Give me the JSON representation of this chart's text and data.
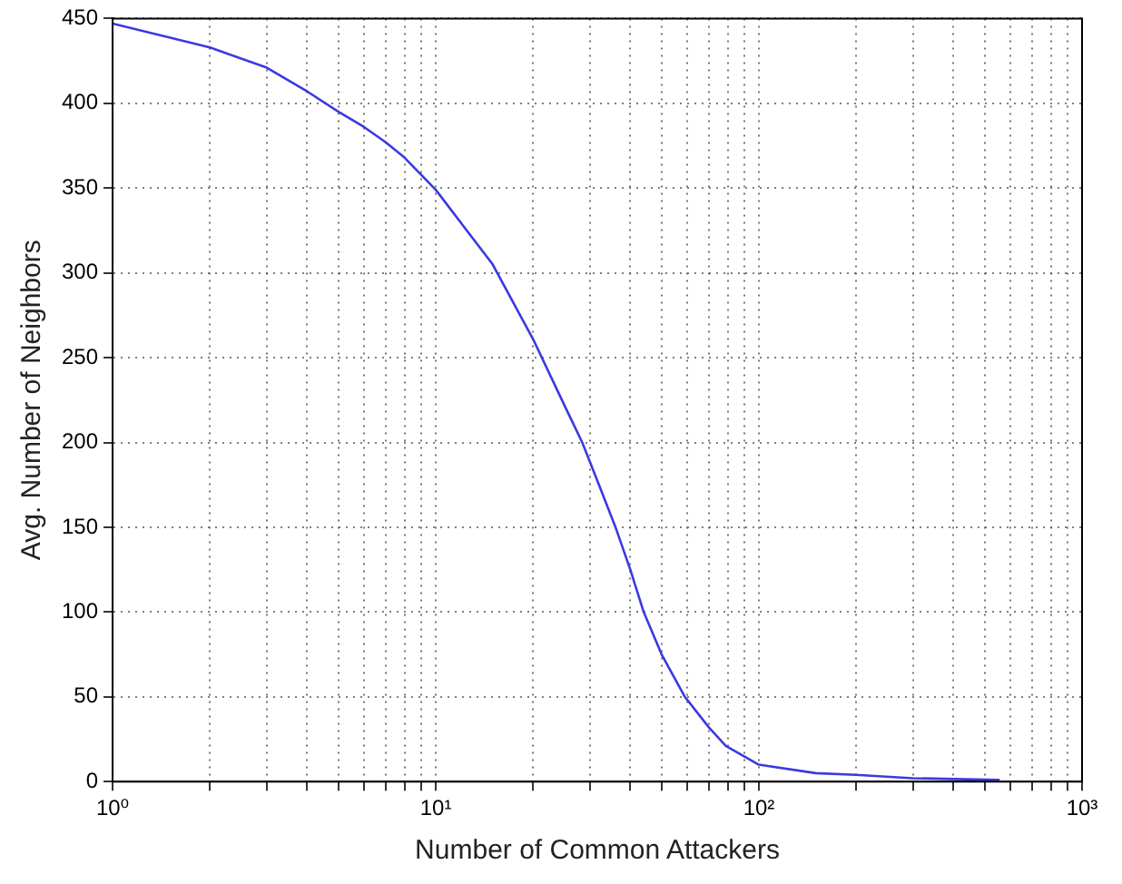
{
  "chart_data": {
    "type": "line",
    "xlabel": "Number of Common Attackers",
    "ylabel": "Avg. Number of Neighbors",
    "log": "x",
    "grid": true,
    "legend": false,
    "marker": "none",
    "line_style": "solid",
    "xlim": [
      1,
      1000
    ],
    "ylim": [
      0,
      450
    ],
    "xticks": [
      {
        "value": 1,
        "label": "10⁰"
      },
      {
        "value": 2,
        "label": null
      },
      {
        "value": 3,
        "label": null
      },
      {
        "value": 4,
        "label": null
      },
      {
        "value": 5,
        "label": null
      },
      {
        "value": 6,
        "label": null
      },
      {
        "value": 7,
        "label": null
      },
      {
        "value": 8,
        "label": null
      },
      {
        "value": 9,
        "label": null
      },
      {
        "value": 10,
        "label": "10¹"
      },
      {
        "value": 20,
        "label": null
      },
      {
        "value": 30,
        "label": null
      },
      {
        "value": 40,
        "label": null
      },
      {
        "value": 50,
        "label": null
      },
      {
        "value": 60,
        "label": null
      },
      {
        "value": 70,
        "label": null
      },
      {
        "value": 80,
        "label": null
      },
      {
        "value": 90,
        "label": null
      },
      {
        "value": 100,
        "label": "10²"
      },
      {
        "value": 200,
        "label": null
      },
      {
        "value": 300,
        "label": null
      },
      {
        "value": 400,
        "label": null
      },
      {
        "value": 500,
        "label": null
      },
      {
        "value": 600,
        "label": null
      },
      {
        "value": 700,
        "label": null
      },
      {
        "value": 800,
        "label": null
      },
      {
        "value": 900,
        "label": null
      },
      {
        "value": 1000,
        "label": "10³"
      }
    ],
    "yticks": [
      0,
      50,
      100,
      150,
      200,
      250,
      300,
      350,
      400,
      450
    ],
    "series": [
      {
        "color": "#3a3ae0",
        "x": [
          1,
          2,
          3,
          4,
          5,
          6,
          7,
          8,
          10,
          15,
          20,
          25,
          28.4,
          32,
          36,
          40,
          44,
          50,
          59,
          70,
          79,
          100,
          150,
          200,
          300,
          556
        ],
        "values": [
          447,
          433,
          421,
          407,
          395,
          386,
          377,
          368,
          349,
          305,
          261,
          222,
          200,
          175,
          150,
          125,
          100,
          75,
          50,
          32,
          21,
          10,
          5,
          4,
          2,
          1
        ]
      }
    ]
  }
}
